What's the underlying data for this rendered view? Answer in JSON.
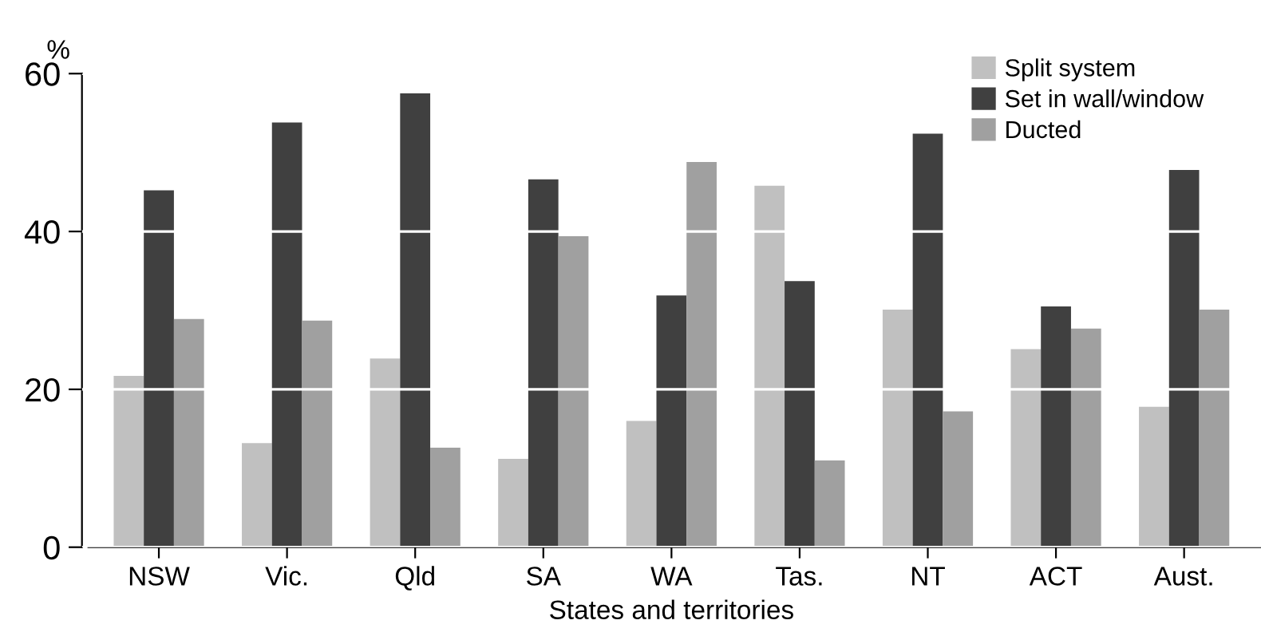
{
  "chart_data": {
    "type": "bar",
    "ylabel": "%",
    "xlabel": "States and territories",
    "categories": [
      "NSW",
      "Vic.",
      "Qld",
      "SA",
      "WA",
      "Tas.",
      "NT",
      "ACT",
      "Aust."
    ],
    "series": [
      {
        "name": "Split system",
        "color": "#c0c0c0",
        "values": [
          21.7,
          13.2,
          23.9,
          11.2,
          16.0,
          45.8,
          30.1,
          25.1,
          17.8
        ]
      },
      {
        "name": "Set in wall/window",
        "color": "#404040",
        "values": [
          45.2,
          53.8,
          57.5,
          46.6,
          31.9,
          33.7,
          52.4,
          30.5,
          47.8
        ]
      },
      {
        "name": "Ducted",
        "color": "#a0a0a0",
        "values": [
          28.9,
          28.7,
          12.6,
          39.4,
          48.8,
          11.0,
          17.2,
          27.7,
          30.1
        ]
      }
    ],
    "ylim": [
      0,
      60
    ],
    "yticks": [
      0,
      20,
      40,
      60
    ],
    "grid": "y",
    "legend": "top right"
  }
}
